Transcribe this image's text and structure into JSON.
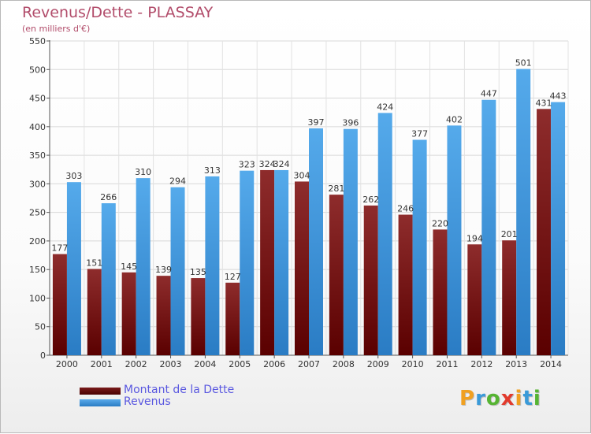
{
  "header": {
    "title": "Revenus/Dette - PLASSAY",
    "subtitle": "(en milliers d'€)"
  },
  "chart_data": {
    "type": "bar",
    "title": "Revenus/Dette - PLASSAY",
    "subtitle": "(en milliers d'€)",
    "categories": [
      "2000",
      "2001",
      "2002",
      "2003",
      "2004",
      "2005",
      "2006",
      "2007",
      "2008",
      "2009",
      "2010",
      "2011",
      "2012",
      "2013",
      "2014"
    ],
    "series": [
      {
        "name": "Montant de la Dette",
        "values": [
          177,
          151,
          145,
          139,
          135,
          127,
          324,
          304,
          281,
          262,
          246,
          220,
          194,
          201,
          431
        ],
        "color": "#7a1c1c"
      },
      {
        "name": "Revenus",
        "values": [
          303,
          266,
          310,
          294,
          313,
          323,
          324,
          397,
          396,
          424,
          377,
          402,
          447,
          501,
          443
        ],
        "color": "#3a96df"
      }
    ],
    "ylim": [
      0,
      550
    ],
    "yticks": [
      0,
      50,
      100,
      150,
      200,
      250,
      300,
      350,
      400,
      450,
      500,
      550
    ],
    "grid": true,
    "legend_position": "bottom-left"
  },
  "legend": {
    "items": [
      {
        "label": "Montant de la Dette",
        "color": "#5a0c0c"
      },
      {
        "label": "Revenus",
        "color": "#3a96df"
      }
    ]
  },
  "logo": {
    "letters": [
      {
        "ch": "P",
        "color": "#f0a020"
      },
      {
        "ch": "r",
        "color": "#3a9ad8"
      },
      {
        "ch": "o",
        "color": "#56b432"
      },
      {
        "ch": "x",
        "color": "#e23a2c"
      },
      {
        "ch": "i",
        "color": "#f0a020"
      },
      {
        "ch": "t",
        "color": "#3a9ad8"
      },
      {
        "ch": "i",
        "color": "#56b432"
      }
    ]
  }
}
